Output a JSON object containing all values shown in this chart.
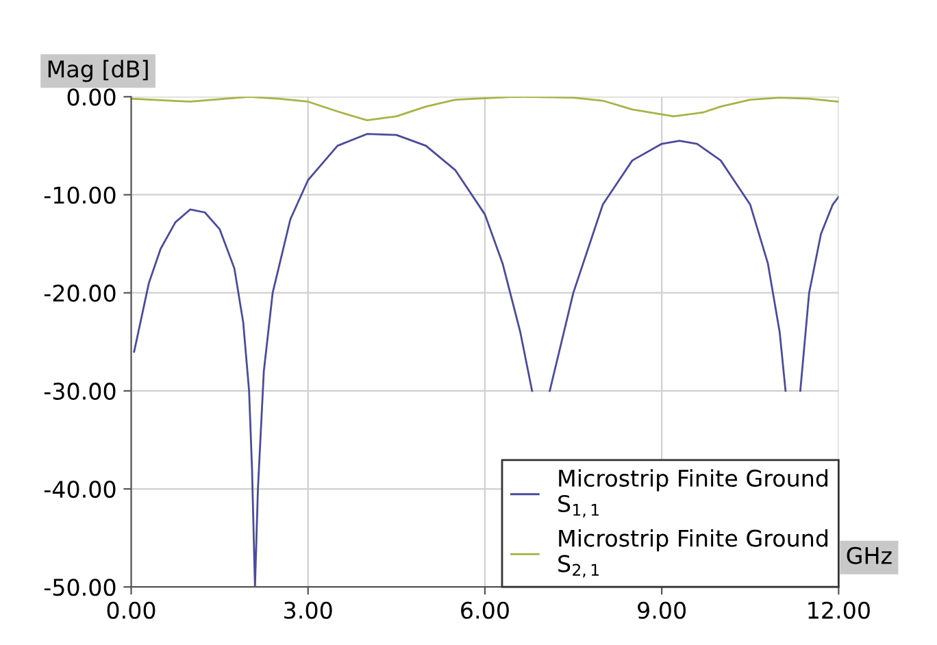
{
  "chart_data": {
    "type": "line",
    "xlabel": "GHz",
    "ylabel": "Mag [dB]",
    "xlim": [
      0,
      12
    ],
    "ylim": [
      -50,
      0
    ],
    "xticks": [
      {
        "value": 0,
        "label": "0.00"
      },
      {
        "value": 3,
        "label": "3.00"
      },
      {
        "value": 6,
        "label": "6.00"
      },
      {
        "value": 9,
        "label": "9.00"
      },
      {
        "value": 12,
        "label": "12.00"
      }
    ],
    "yticks": [
      {
        "value": -50,
        "label": "-50.00"
      },
      {
        "value": -40,
        "label": "-40.00"
      },
      {
        "value": -30,
        "label": "-30.00"
      },
      {
        "value": -20,
        "label": "-20.00"
      },
      {
        "value": -10,
        "label": "-10.00"
      },
      {
        "value": 0,
        "label": "0.00"
      }
    ],
    "grid": true,
    "legend": "bottom right",
    "marker": "none",
    "line_style": "solid",
    "series": [
      {
        "name": "Microstrip Finite Ground\nS$_{1,1}$",
        "color": "#4b4b9c",
        "x": [
          0.05,
          0.3,
          0.5,
          0.75,
          1.0,
          1.25,
          1.5,
          1.75,
          1.9,
          2.0,
          2.05,
          2.1,
          2.15,
          2.25,
          2.4,
          2.7,
          3.0,
          3.5,
          4.0,
          4.5,
          5.0,
          5.5,
          6.0,
          6.3,
          6.6,
          6.8,
          6.95,
          7.1,
          7.5,
          8.0,
          8.5,
          9.0,
          9.3,
          9.6,
          10.0,
          10.5,
          10.8,
          11.0,
          11.1,
          11.2,
          11.35,
          11.5,
          11.7,
          11.9,
          12.0
        ],
        "values": [
          -26,
          -19,
          -15.5,
          -12.8,
          -11.5,
          -11.8,
          -13.5,
          -17.5,
          -23,
          -30,
          -38,
          -50,
          -40,
          -28,
          -20,
          -12.5,
          -8.5,
          -5,
          -3.8,
          -3.9,
          -5,
          -7.5,
          -12,
          -17,
          -24,
          -30,
          null,
          -30,
          -20,
          -11,
          -6.5,
          -4.8,
          -4.5,
          -4.8,
          -6.5,
          -11,
          -17,
          -24,
          -30,
          null,
          -30,
          -20,
          -14,
          -11,
          -10.2
        ]
      },
      {
        "name": "Microstrip Finite Ground\nS$_{2,1}$",
        "color": "#a9b245",
        "x": [
          0,
          1,
          2,
          2.5,
          3,
          3.5,
          4,
          4.5,
          5,
          5.5,
          6.5,
          7.5,
          8,
          8.5,
          9.2,
          9.7,
          10,
          10.5,
          11,
          11.5,
          12
        ],
        "values": [
          -0.2,
          -0.5,
          0,
          -0.2,
          -0.5,
          -1.5,
          -2.4,
          -2.0,
          -1.0,
          -0.3,
          0,
          -0.1,
          -0.4,
          -1.3,
          -2.0,
          -1.6,
          -1.0,
          -0.3,
          -0.1,
          -0.2,
          -0.5
        ]
      }
    ]
  }
}
